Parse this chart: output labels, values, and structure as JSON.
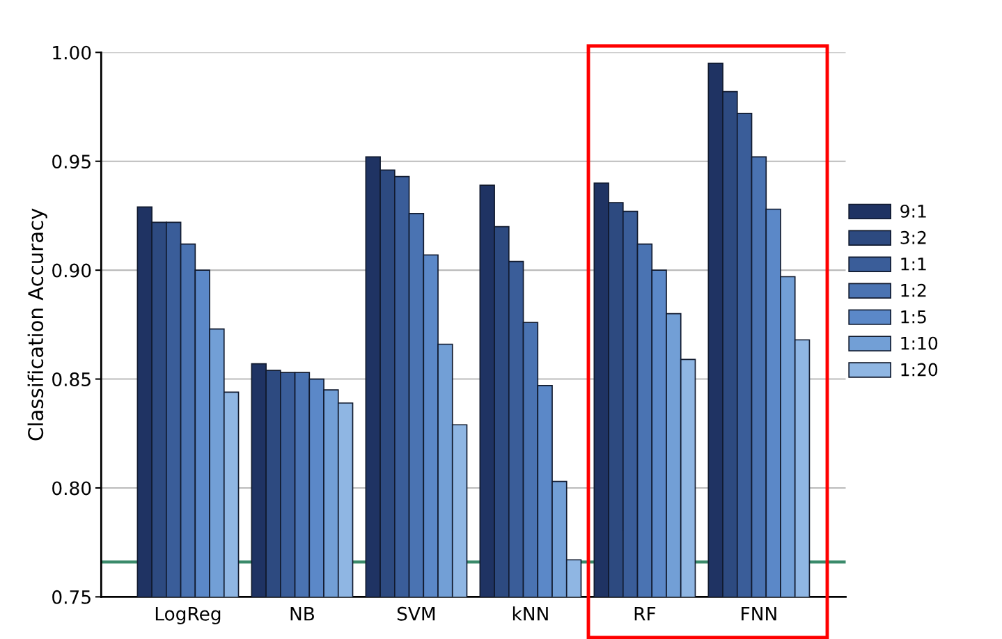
{
  "chart_data": {
    "type": "bar",
    "ylabel": "Classification Accuracy",
    "categories": [
      "LogReg",
      "NB",
      "SVM",
      "kNN",
      "RF",
      "FNN"
    ],
    "series": [
      {
        "name": "9:1",
        "color": "#1f3363",
        "values": [
          0.929,
          0.857,
          0.952,
          0.939,
          0.94,
          0.995
        ]
      },
      {
        "name": "3:2",
        "color": "#2d4a80",
        "values": [
          0.922,
          0.854,
          0.946,
          0.92,
          0.931,
          0.982
        ]
      },
      {
        "name": "1:1",
        "color": "#3a5d99",
        "values": [
          0.922,
          0.853,
          0.943,
          0.904,
          0.927,
          0.972
        ]
      },
      {
        "name": "1:2",
        "color": "#4a73b2",
        "values": [
          0.912,
          0.853,
          0.926,
          0.876,
          0.912,
          0.952
        ]
      },
      {
        "name": "1:5",
        "color": "#5b88c8",
        "values": [
          0.9,
          0.85,
          0.907,
          0.847,
          0.9,
          0.928
        ]
      },
      {
        "name": "1:10",
        "color": "#729fd6",
        "values": [
          0.873,
          0.845,
          0.866,
          0.803,
          0.88,
          0.897
        ]
      },
      {
        "name": "1:20",
        "color": "#8fb6e3",
        "values": [
          0.844,
          0.839,
          0.829,
          0.767,
          0.859,
          0.868
        ]
      }
    ],
    "ylim": [
      0.75,
      1.0
    ],
    "yticks": [
      {
        "value": 0.75,
        "label": "0.75"
      },
      {
        "value": 0.8,
        "label": "0.80"
      },
      {
        "value": 0.85,
        "label": "0.85"
      },
      {
        "value": 0.9,
        "label": "0.90"
      },
      {
        "value": 0.95,
        "label": "0.95"
      },
      {
        "value": 1.0,
        "label": "1.00"
      }
    ],
    "grid": "y",
    "legend": "right",
    "ref_lines": [
      {
        "axis": "y",
        "value": 0.766,
        "color": "#3a8a6a"
      }
    ]
  }
}
